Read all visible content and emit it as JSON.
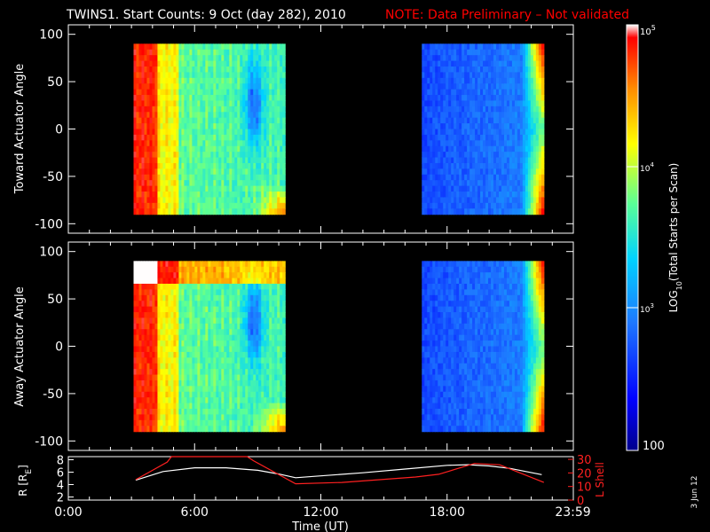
{
  "title": {
    "main": "TWINS1. Start Counts:  9 Oct (day 282), 2010",
    "note": "NOTE: Data Preliminary – Not validated"
  },
  "colors": {
    "background": "#000000",
    "axes": "#ffffff",
    "note": "#ff0000",
    "r_line": "#ffffff",
    "lshell_line": "#ff2020",
    "colormap": [
      "#00008c",
      "#0000ff",
      "#1e78ff",
      "#00d2ff",
      "#5aff96",
      "#ffff00",
      "#ff8c00",
      "#ff0000",
      "#ffffff"
    ]
  },
  "chart_data": [
    {
      "type": "heatmap",
      "name": "toward",
      "ylabel": "Toward Actuator Angle",
      "xlim": [
        0,
        24
      ],
      "ylim": [
        -110,
        110
      ],
      "yticks": [
        -100,
        -50,
        0,
        50,
        100
      ],
      "ytick_labels": [
        "-100",
        "-50",
        "0",
        "50",
        "100"
      ],
      "data_blocks": [
        {
          "t_start": 3.1,
          "t_end": 10.3,
          "angle_min": -90,
          "angle_max": 90,
          "regime": "high"
        },
        {
          "t_start": 16.8,
          "t_end": 22.6,
          "angle_min": -90,
          "angle_max": 90,
          "regime": "low"
        }
      ]
    },
    {
      "type": "heatmap",
      "name": "away",
      "ylabel": "Away Actuator Angle",
      "xlim": [
        0,
        24
      ],
      "ylim": [
        -110,
        110
      ],
      "yticks": [
        -100,
        -50,
        0,
        50,
        100
      ],
      "ytick_labels": [
        "-100",
        "-50",
        "0",
        "50",
        "100"
      ],
      "data_blocks": [
        {
          "t_start": 3.1,
          "t_end": 10.3,
          "angle_min": -90,
          "angle_max": 90,
          "regime": "high"
        },
        {
          "t_start": 16.8,
          "t_end": 22.6,
          "angle_min": -90,
          "angle_max": 90,
          "regime": "low"
        }
      ]
    },
    {
      "type": "line",
      "name": "orbit",
      "xlabel": "Time (UT)",
      "xlim": [
        0,
        24
      ],
      "xtick_labels": [
        "0:00",
        "6:00",
        "12:00",
        "18:00",
        "23:59"
      ],
      "xtick_values": [
        0,
        6,
        12,
        18,
        23.98
      ],
      "ylabel_left": "R [R",
      "ylabel_left_sub": "E",
      "ylabel_left_end": "]",
      "ylim_left": [
        1.5,
        8.5
      ],
      "yticks_left": [
        2,
        4,
        6,
        8
      ],
      "ytick_labels_left": [
        "2",
        "4",
        "6",
        "8"
      ],
      "ylabel_right": "L Shell",
      "ylim_right": [
        0,
        32
      ],
      "yticks_right": [
        0,
        10,
        20,
        30
      ],
      "ytick_labels_right": [
        "0",
        "10",
        "20",
        "30"
      ],
      "series": [
        {
          "axis": "left",
          "x": [
            3.2,
            4.5,
            6.0,
            7.5,
            9.0,
            10.0,
            10.8,
            12.0,
            14.0,
            16.0,
            18.0,
            19.0,
            20.0,
            21.0,
            22.5
          ],
          "y": [
            4.7,
            6.1,
            6.7,
            6.7,
            6.3,
            5.7,
            5.1,
            5.4,
            5.9,
            6.5,
            7.1,
            7.2,
            7.0,
            6.6,
            5.6
          ]
        },
        {
          "axis": "right",
          "x": [
            3.2,
            4.7,
            4.9,
            8.5,
            8.8,
            10.8,
            13.0,
            16.5,
            17.6,
            19.3,
            20.5,
            22.6
          ],
          "y": [
            15,
            28,
            32,
            32,
            29,
            12,
            13,
            17,
            19,
            27,
            26,
            13
          ]
        }
      ]
    },
    {
      "type": "colorbar",
      "label_pre": "LOG",
      "label_sub": "10",
      "label_post": "(Total Starts per Scan)",
      "log_range": [
        2,
        5
      ],
      "tick_labels": [
        "100",
        "10",
        "3",
        "10",
        "4",
        "10",
        "5"
      ]
    }
  ],
  "footer": {
    "date": "3 Jun 12"
  }
}
